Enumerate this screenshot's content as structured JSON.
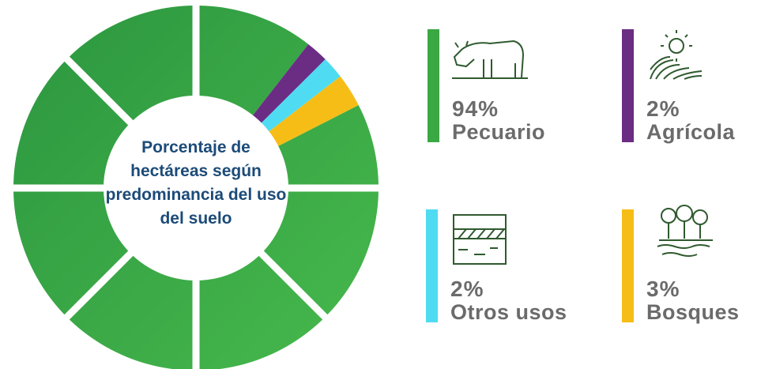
{
  "chart_data": {
    "type": "pie",
    "title": "Porcentaje de hectáreas según predominancia del uso del suelo",
    "categories": [
      "Pecuario",
      "Agrícola",
      "Otros usos",
      "Bosques"
    ],
    "values": [
      94,
      2,
      2,
      3
    ],
    "value_labels": [
      "94%",
      "2%",
      "2%",
      "3%"
    ],
    "colors": [
      "#3aa843",
      "#6b2c83",
      "#4fdcf2",
      "#f6bd17"
    ]
  }
}
